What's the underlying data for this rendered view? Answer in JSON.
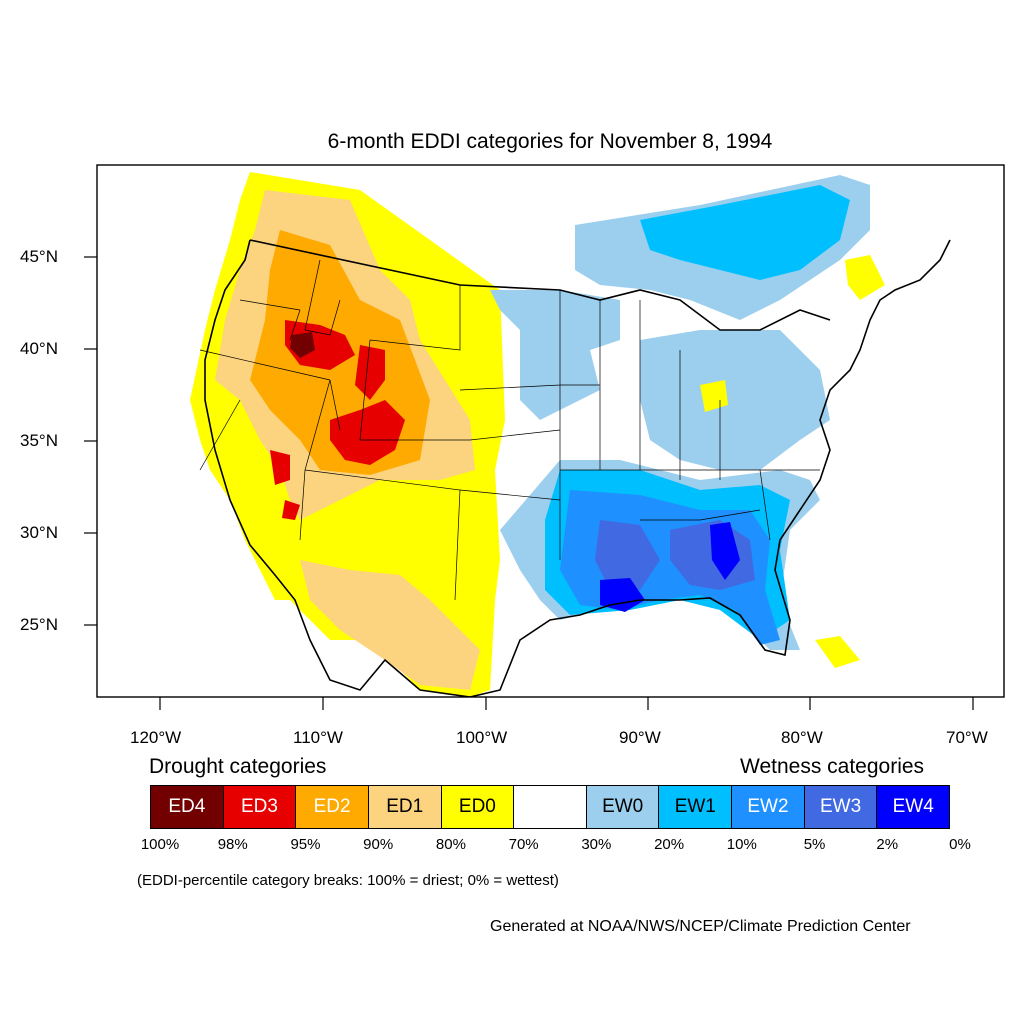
{
  "title": "6-month EDDI categories for November 8, 1994",
  "lat_labels": [
    "45°N",
    "40°N",
    "35°N",
    "30°N",
    "25°N"
  ],
  "lon_labels": [
    "120°W",
    "110°W",
    "100°W",
    "90°W",
    "80°W",
    "70°W"
  ],
  "legend": {
    "drought_title": "Drought categories",
    "wetness_title": "Wetness categories",
    "categories": [
      {
        "label": "ED4",
        "color": "#730000",
        "text_color": "#ffffff"
      },
      {
        "label": "ED3",
        "color": "#e60000",
        "text_color": "#ffffff"
      },
      {
        "label": "ED2",
        "color": "#ffaa00",
        "text_color": "#ffffff"
      },
      {
        "label": "ED1",
        "color": "#fcd37f",
        "text_color": "#000000"
      },
      {
        "label": "ED0",
        "color": "#ffff00",
        "text_color": "#000000"
      },
      {
        "label": "",
        "color": "#ffffff",
        "text_color": "#000000"
      },
      {
        "label": "EW0",
        "color": "#9ccfee",
        "text_color": "#000000"
      },
      {
        "label": "EW1",
        "color": "#00bfff",
        "text_color": "#000000"
      },
      {
        "label": "EW2",
        "color": "#1e90ff",
        "text_color": "#ffffff"
      },
      {
        "label": "EW3",
        "color": "#4169e1",
        "text_color": "#ffffff"
      },
      {
        "label": "EW4",
        "color": "#0000ff",
        "text_color": "#ffffff"
      }
    ],
    "breaks": [
      "100%",
      "98%",
      "95%",
      "90%",
      "80%",
      "70%",
      "30%",
      "20%",
      "10%",
      "5%",
      "2%",
      "0%"
    ]
  },
  "note": "(EDDI-percentile category breaks: 100% = driest; 0% = wettest)",
  "credit": "Generated at NOAA/NWS/NCEP/Climate Prediction Center"
}
